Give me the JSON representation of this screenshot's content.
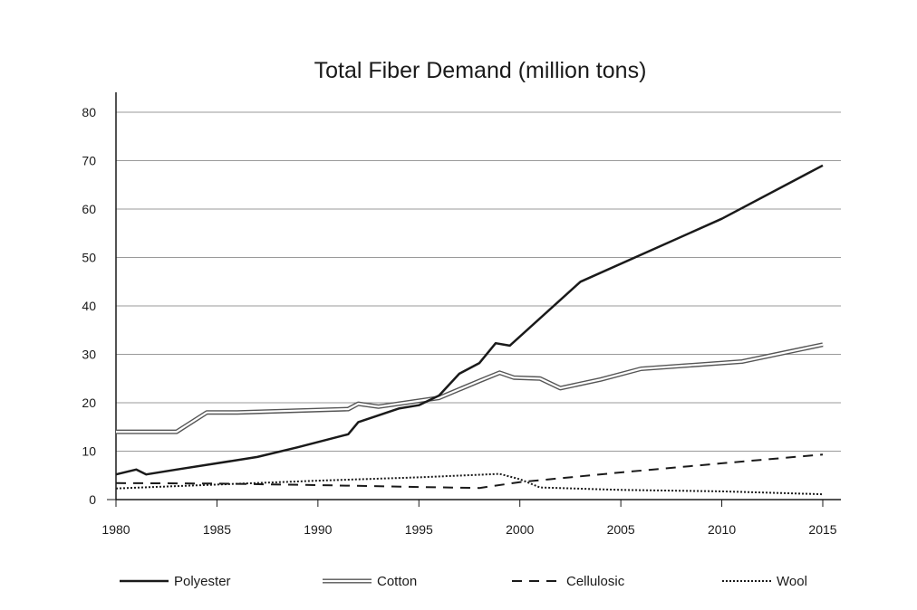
{
  "chart_data": {
    "type": "line",
    "title": "Total Fiber Demand (million tons)",
    "xlabel": "",
    "ylabel": "",
    "xlim": [
      1980,
      2015
    ],
    "ylim": [
      0,
      80
    ],
    "xticks": [
      1980,
      1985,
      1990,
      1995,
      2000,
      2005,
      2010,
      2015
    ],
    "yticks": [
      0,
      10,
      20,
      30,
      40,
      50,
      60,
      70,
      80
    ],
    "grid": "horizontal",
    "legend_position": "bottom",
    "series": [
      {
        "name": "Polyester",
        "style": "solid",
        "color": "#1a1a1a",
        "points": [
          [
            1980,
            5.2
          ],
          [
            1981,
            6.2
          ],
          [
            1981.5,
            5.2
          ],
          [
            1983,
            6.2
          ],
          [
            1985,
            7.5
          ],
          [
            1987,
            8.8
          ],
          [
            1989,
            10.8
          ],
          [
            1991.5,
            13.5
          ],
          [
            1992,
            16
          ],
          [
            1994,
            18.8
          ],
          [
            1995,
            19.5
          ],
          [
            1996,
            21.5
          ],
          [
            1997,
            26
          ],
          [
            1998,
            28.2
          ],
          [
            1998.8,
            32.3
          ],
          [
            1999.5,
            31.8
          ],
          [
            2003,
            45
          ],
          [
            2010,
            58
          ],
          [
            2015,
            69
          ]
        ]
      },
      {
        "name": "Cotton",
        "style": "double",
        "color": "#1a1a1a",
        "points": [
          [
            1980,
            14
          ],
          [
            1983,
            14
          ],
          [
            1984.5,
            18
          ],
          [
            1986,
            18
          ],
          [
            1991.5,
            18.7
          ],
          [
            1992,
            19.8
          ],
          [
            1993,
            19.2
          ],
          [
            1996,
            21
          ],
          [
            1998,
            24.5
          ],
          [
            1999,
            26.2
          ],
          [
            1999.7,
            25.2
          ],
          [
            2001,
            25
          ],
          [
            2002,
            23
          ],
          [
            2004,
            24.8
          ],
          [
            2006,
            27
          ],
          [
            2011,
            28.5
          ],
          [
            2015,
            32
          ]
        ]
      },
      {
        "name": "Cellulosic",
        "style": "dashed",
        "color": "#1a1a1a",
        "points": [
          [
            1980,
            3.4
          ],
          [
            1985,
            3.3
          ],
          [
            1990,
            3
          ],
          [
            1995,
            2.6
          ],
          [
            1998,
            2.4
          ],
          [
            2000,
            3.6
          ],
          [
            2005,
            5.6
          ],
          [
            2010,
            7.5
          ],
          [
            2015,
            9.3
          ]
        ]
      },
      {
        "name": "Wool",
        "style": "dotted",
        "color": "#1a1a1a",
        "points": [
          [
            1980,
            2.3
          ],
          [
            1985,
            3.1
          ],
          [
            1990,
            3.9
          ],
          [
            1995,
            4.6
          ],
          [
            1999,
            5.3
          ],
          [
            2000,
            4.2
          ],
          [
            2001,
            2.5
          ],
          [
            2005,
            2
          ],
          [
            2010,
            1.7
          ],
          [
            2015,
            1.1
          ]
        ]
      }
    ]
  }
}
